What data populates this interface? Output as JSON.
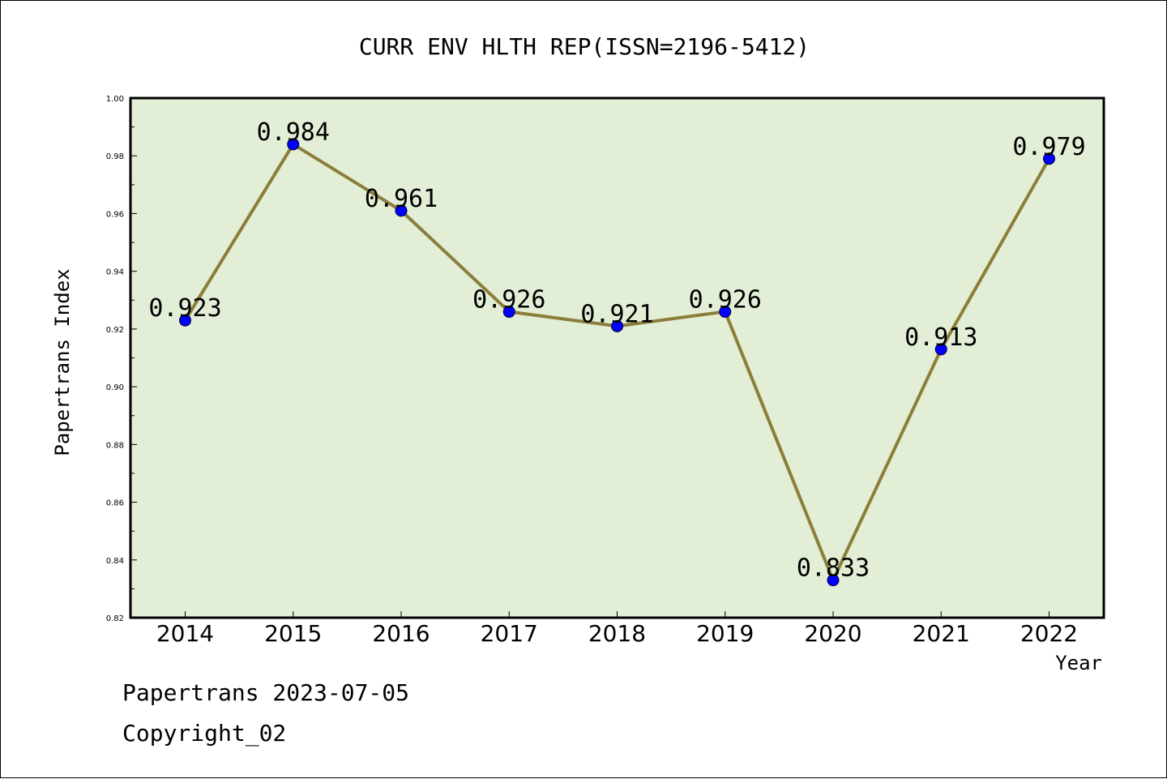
{
  "chart_data": {
    "type": "line",
    "title": "CURR ENV HLTH REP(ISSN=2196-5412)",
    "xlabel": "Year",
    "ylabel": "Papertrans Index",
    "categories": [
      "2014",
      "2015",
      "2016",
      "2017",
      "2018",
      "2019",
      "2020",
      "2021",
      "2022"
    ],
    "values": [
      0.923,
      0.984,
      0.961,
      0.926,
      0.921,
      0.926,
      0.833,
      0.913,
      0.979
    ],
    "data_labels": [
      "0.923",
      "0.984",
      "0.961",
      "0.926",
      "0.921",
      "0.926",
      "0.833",
      "0.913",
      "0.979"
    ],
    "ylim": [
      0.82,
      1.0
    ],
    "yticks": [
      "0.82",
      "0.84",
      "0.86",
      "0.88",
      "0.90",
      "0.92",
      "0.94",
      "0.96",
      "0.98",
      "1.00"
    ],
    "grid": false,
    "colors": {
      "plot_background": "#e2efd6",
      "line": "#8b7d3a",
      "marker": "#0000ff"
    }
  },
  "footer": {
    "line1": "Papertrans 2023-07-05",
    "line2": "Copyright_02"
  }
}
